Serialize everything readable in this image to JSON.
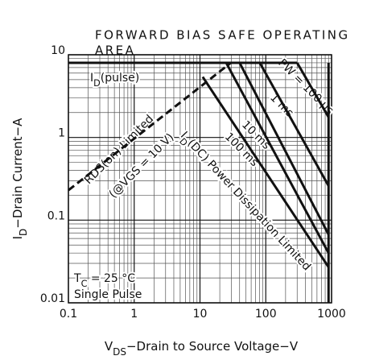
{
  "chart_data": {
    "type": "line",
    "title_lines": [
      "FORWARD BIAS SAFE OPERATING",
      "AREA"
    ],
    "x_label": [
      {
        "t": "V"
      },
      {
        "t": "DS",
        "sub": true
      },
      {
        "t": "−Drain to Source Voltage−V"
      }
    ],
    "y_label": [
      {
        "t": "I"
      },
      {
        "t": "D",
        "sub": true
      },
      {
        "t": "−Drain Current−A"
      }
    ],
    "log_x": true,
    "log_y": true,
    "grid": true,
    "minor_grid": true,
    "xlim": [
      0.1,
      1000
    ],
    "ylim": [
      0.01,
      10
    ],
    "xticks": [
      0.1,
      1,
      10,
      100,
      1000
    ],
    "yticks": [
      0.01,
      0.1,
      1,
      10
    ],
    "series": [
      {
        "x": [
          0.1,
          29.5
        ],
        "values": [
          0.23,
          8
        ],
        "color": "#111",
        "dashed": true
      },
      {
        "x": [
          0.1,
          300
        ],
        "values": [
          8,
          8
        ],
        "color": "#111"
      },
      {
        "x": [
          300,
          900
        ],
        "values": [
          8,
          1.76
        ],
        "color": "#111"
      },
      {
        "x": [
          81,
          900
        ],
        "values": [
          8,
          0.26
        ],
        "color": "#111"
      },
      {
        "x": [
          40,
          900
        ],
        "values": [
          8,
          0.067
        ],
        "color": "#111"
      },
      {
        "x": [
          25,
          900
        ],
        "values": [
          8,
          0.04
        ],
        "color": "#111"
      },
      {
        "x": [
          11,
          900
        ],
        "values": [
          5.4,
          0.027
        ],
        "color": "#111"
      },
      {
        "x": [
          900,
          900
        ],
        "values": [
          8,
          0.01
        ],
        "color": "#111"
      }
    ],
    "annotations": [
      [
        {
          "t": "I"
        },
        {
          "t": "D",
          "sub": true
        },
        {
          "t": "(pulse)"
        }
      ],
      [
        {
          "t": "RDS(on) Limited"
        }
      ],
      [
        {
          "t": "(@VGS = 10 V)"
        }
      ],
      [
        {
          "t": "I"
        },
        {
          "t": "D",
          "sub": true
        },
        {
          "t": "(DC) Power Dissipation Limited"
        }
      ],
      [
        {
          "t": "PW = 100 µs"
        }
      ],
      [
        {
          "t": "1 ms"
        }
      ],
      [
        {
          "t": "10 ms"
        }
      ],
      [
        {
          "t": "100 ms"
        }
      ],
      [
        {
          "t": "T"
        },
        {
          "t": "C",
          "sub": true
        },
        {
          "t": " = 25 °C"
        }
      ],
      [
        {
          "t": "Single Pulse"
        }
      ]
    ]
  }
}
